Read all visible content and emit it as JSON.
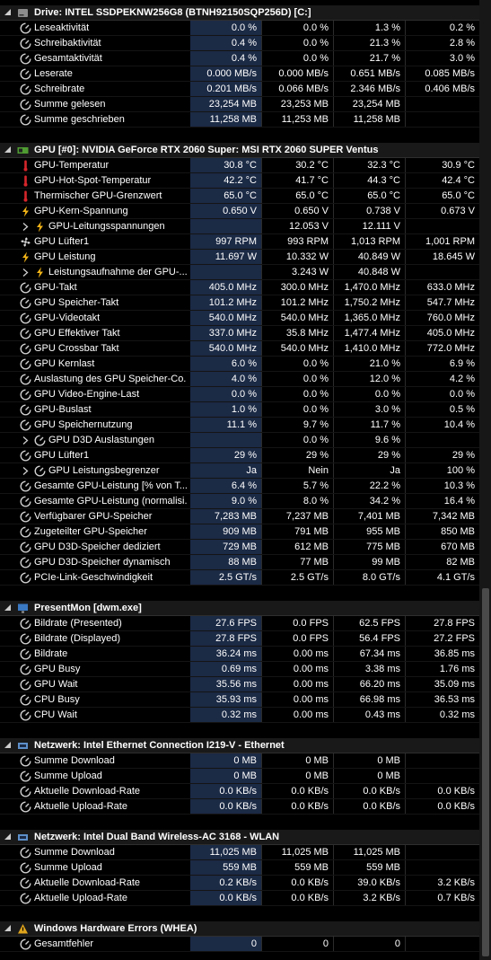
{
  "sections": [
    {
      "title": "Drive: INTEL SSDPEKNW256G8 (BTNH92150SQP256D) [C:]",
      "icon": "disk-icon",
      "rows": [
        {
          "icon": "clock-icon",
          "label": "Leseaktivität",
          "v": [
            "0.0 %",
            "0.0 %",
            "1.3 %",
            "0.2 %"
          ]
        },
        {
          "icon": "clock-icon",
          "label": "Schreibaktivität",
          "v": [
            "0.4 %",
            "0.0 %",
            "21.3 %",
            "2.8 %"
          ]
        },
        {
          "icon": "clock-icon",
          "label": "Gesamtaktivität",
          "v": [
            "0.4 %",
            "0.0 %",
            "21.7 %",
            "3.0 %"
          ]
        },
        {
          "icon": "clock-icon",
          "label": "Leserate",
          "v": [
            "0.000 MB/s",
            "0.000 MB/s",
            "0.651 MB/s",
            "0.085 MB/s"
          ]
        },
        {
          "icon": "clock-icon",
          "label": "Schreibrate",
          "v": [
            "0.201 MB/s",
            "0.066 MB/s",
            "2.346 MB/s",
            "0.406 MB/s"
          ]
        },
        {
          "icon": "clock-icon",
          "label": "Summe gelesen",
          "v": [
            "23,254 MB",
            "23,253 MB",
            "23,254 MB",
            ""
          ]
        },
        {
          "icon": "clock-icon",
          "label": "Summe geschrieben",
          "v": [
            "11,258 MB",
            "11,253 MB",
            "11,258 MB",
            ""
          ]
        }
      ]
    },
    {
      "title": "GPU [#0]: NVIDIA GeForce RTX 2060 Super: MSI RTX 2060 SUPER Ventus",
      "icon": "gpu-icon",
      "rows": [
        {
          "icon": "thermometer-icon",
          "label": "GPU-Temperatur",
          "v": [
            "30.8 °C",
            "30.2 °C",
            "32.3 °C",
            "30.9 °C"
          ]
        },
        {
          "icon": "thermometer-icon",
          "label": "GPU-Hot-Spot-Temperatur",
          "v": [
            "42.2 °C",
            "41.7 °C",
            "44.3 °C",
            "42.4 °C"
          ]
        },
        {
          "icon": "thermometer-icon",
          "label": "Thermischer GPU-Grenzwert",
          "v": [
            "65.0 °C",
            "65.0 °C",
            "65.0 °C",
            "65.0 °C"
          ]
        },
        {
          "icon": "lightning-icon",
          "label": "GPU-Kern-Spannung",
          "v": [
            "0.650 V",
            "0.650 V",
            "0.738 V",
            "0.673 V"
          ]
        },
        {
          "icon": "lightning-icon",
          "label": "GPU-Leitungsspannungen",
          "v": [
            "",
            "12.053 V",
            "12.111 V",
            ""
          ],
          "expand": true
        },
        {
          "icon": "fan-icon",
          "label": "GPU Lüfter1",
          "v": [
            "997 RPM",
            "993 RPM",
            "1,013 RPM",
            "1,001 RPM"
          ]
        },
        {
          "icon": "lightning-icon",
          "label": "GPU Leistung",
          "v": [
            "11.697 W",
            "10.332 W",
            "40.849 W",
            "18.645 W"
          ]
        },
        {
          "icon": "lightning-icon",
          "label": "Leistungsaufnahme der GPU-...",
          "v": [
            "",
            "3.243 W",
            "40.848 W",
            ""
          ],
          "expand": true
        },
        {
          "icon": "clock-icon",
          "label": "GPU-Takt",
          "v": [
            "405.0 MHz",
            "300.0 MHz",
            "1,470.0 MHz",
            "633.0 MHz"
          ]
        },
        {
          "icon": "clock-icon",
          "label": "GPU Speicher-Takt",
          "v": [
            "101.2 MHz",
            "101.2 MHz",
            "1,750.2 MHz",
            "547.7 MHz"
          ]
        },
        {
          "icon": "clock-icon",
          "label": "GPU-Videotakt",
          "v": [
            "540.0 MHz",
            "540.0 MHz",
            "1,365.0 MHz",
            "760.0 MHz"
          ]
        },
        {
          "icon": "clock-icon",
          "label": "GPU Effektiver Takt",
          "v": [
            "337.0 MHz",
            "35.8 MHz",
            "1,477.4 MHz",
            "405.0 MHz"
          ]
        },
        {
          "icon": "clock-icon",
          "label": "GPU Crossbar Takt",
          "v": [
            "540.0 MHz",
            "540.0 MHz",
            "1,410.0 MHz",
            "772.0 MHz"
          ]
        },
        {
          "icon": "clock-icon",
          "label": "GPU Kernlast",
          "v": [
            "6.0 %",
            "0.0 %",
            "21.0 %",
            "6.9 %"
          ]
        },
        {
          "icon": "clock-icon",
          "label": "Auslastung des GPU Speicher-Co...",
          "v": [
            "4.0 %",
            "0.0 %",
            "12.0 %",
            "4.2 %"
          ]
        },
        {
          "icon": "clock-icon",
          "label": "GPU Video-Engine-Last",
          "v": [
            "0.0 %",
            "0.0 %",
            "0.0 %",
            "0.0 %"
          ]
        },
        {
          "icon": "clock-icon",
          "label": "GPU-Buslast",
          "v": [
            "1.0 %",
            "0.0 %",
            "3.0 %",
            "0.5 %"
          ]
        },
        {
          "icon": "clock-icon",
          "label": "GPU Speichernutzung",
          "v": [
            "11.1 %",
            "9.7 %",
            "11.7 %",
            "10.4 %"
          ]
        },
        {
          "icon": "clock-icon",
          "label": "GPU D3D Auslastungen",
          "v": [
            "",
            "0.0 %",
            "9.6 %",
            ""
          ],
          "expand": true
        },
        {
          "icon": "clock-icon",
          "label": "GPU Lüfter1",
          "v": [
            "29 %",
            "29 %",
            "29 %",
            "29 %"
          ]
        },
        {
          "icon": "clock-icon",
          "label": "GPU Leistungsbegrenzer",
          "v": [
            "Ja",
            "Nein",
            "Ja",
            "100 %"
          ],
          "expand": true
        },
        {
          "icon": "clock-icon",
          "label": "Gesamte GPU-Leistung [% von T...",
          "v": [
            "6.4 %",
            "5.7 %",
            "22.2 %",
            "10.3 %"
          ]
        },
        {
          "icon": "clock-icon",
          "label": "Gesamte GPU-Leistung (normalisi...",
          "v": [
            "9.0 %",
            "8.0 %",
            "34.2 %",
            "16.4 %"
          ]
        },
        {
          "icon": "clock-icon",
          "label": "Verfügbarer GPU-Speicher",
          "v": [
            "7,283 MB",
            "7,237 MB",
            "7,401 MB",
            "7,342 MB"
          ]
        },
        {
          "icon": "clock-icon",
          "label": "Zugeteilter GPU-Speicher",
          "v": [
            "909 MB",
            "791 MB",
            "955 MB",
            "850 MB"
          ]
        },
        {
          "icon": "clock-icon",
          "label": "GPU D3D-Speicher dediziert",
          "v": [
            "729 MB",
            "612 MB",
            "775 MB",
            "670 MB"
          ]
        },
        {
          "icon": "clock-icon",
          "label": "GPU D3D-Speicher dynamisch",
          "v": [
            "88 MB",
            "77 MB",
            "99 MB",
            "82 MB"
          ]
        },
        {
          "icon": "clock-icon",
          "label": "PCIe-Link-Geschwindigkeit",
          "v": [
            "2.5 GT/s",
            "2.5 GT/s",
            "8.0 GT/s",
            "4.1 GT/s"
          ]
        }
      ]
    },
    {
      "title": "PresentMon [dwm.exe]",
      "icon": "monitor-icon",
      "rows": [
        {
          "icon": "clock-icon",
          "label": "Bildrate (Presented)",
          "v": [
            "27.6 FPS",
            "0.0 FPS",
            "62.5 FPS",
            "27.8 FPS"
          ]
        },
        {
          "icon": "clock-icon",
          "label": "Bildrate (Displayed)",
          "v": [
            "27.8 FPS",
            "0.0 FPS",
            "56.4 FPS",
            "27.2 FPS"
          ]
        },
        {
          "icon": "clock-icon",
          "label": "Bildrate",
          "v": [
            "36.24 ms",
            "0.00 ms",
            "67.34 ms",
            "36.85 ms"
          ]
        },
        {
          "icon": "clock-icon",
          "label": "GPU Busy",
          "v": [
            "0.69 ms",
            "0.00 ms",
            "3.38 ms",
            "1.76 ms"
          ]
        },
        {
          "icon": "clock-icon",
          "label": "GPU Wait",
          "v": [
            "35.56 ms",
            "0.00 ms",
            "66.20 ms",
            "35.09 ms"
          ]
        },
        {
          "icon": "clock-icon",
          "label": "CPU Busy",
          "v": [
            "35.93 ms",
            "0.00 ms",
            "66.98 ms",
            "36.53 ms"
          ]
        },
        {
          "icon": "clock-icon",
          "label": "CPU Wait",
          "v": [
            "0.32 ms",
            "0.00 ms",
            "0.43 ms",
            "0.32 ms"
          ]
        }
      ]
    },
    {
      "title": "Netzwerk: Intel Ethernet Connection I219-V - Ethernet",
      "icon": "network-icon",
      "rows": [
        {
          "icon": "clock-icon",
          "label": "Summe Download",
          "v": [
            "0 MB",
            "0 MB",
            "0 MB",
            ""
          ]
        },
        {
          "icon": "clock-icon",
          "label": "Summe Upload",
          "v": [
            "0 MB",
            "0 MB",
            "0 MB",
            ""
          ]
        },
        {
          "icon": "clock-icon",
          "label": "Aktuelle Download-Rate",
          "v": [
            "0.0 KB/s",
            "0.0 KB/s",
            "0.0 KB/s",
            "0.0 KB/s"
          ]
        },
        {
          "icon": "clock-icon",
          "label": "Aktuelle Upload-Rate",
          "v": [
            "0.0 KB/s",
            "0.0 KB/s",
            "0.0 KB/s",
            "0.0 KB/s"
          ]
        }
      ]
    },
    {
      "title": "Netzwerk: Intel Dual Band Wireless-AC 3168 - WLAN",
      "icon": "network-icon",
      "rows": [
        {
          "icon": "clock-icon",
          "label": "Summe Download",
          "v": [
            "11,025 MB",
            "11,025 MB",
            "11,025 MB",
            ""
          ]
        },
        {
          "icon": "clock-icon",
          "label": "Summe Upload",
          "v": [
            "559 MB",
            "559 MB",
            "559 MB",
            ""
          ]
        },
        {
          "icon": "clock-icon",
          "label": "Aktuelle Download-Rate",
          "v": [
            "0.2 KB/s",
            "0.0 KB/s",
            "39.0 KB/s",
            "3.2 KB/s"
          ]
        },
        {
          "icon": "clock-icon",
          "label": "Aktuelle Upload-Rate",
          "v": [
            "0.0 KB/s",
            "0.0 KB/s",
            "3.2 KB/s",
            "0.7 KB/s"
          ]
        }
      ]
    },
    {
      "title": "Windows Hardware Errors (WHEA)",
      "icon": "warning-icon",
      "rows": [
        {
          "icon": "clock-icon",
          "label": "Gesamtfehler",
          "v": [
            "0",
            "0",
            "0",
            ""
          ]
        }
      ]
    }
  ]
}
